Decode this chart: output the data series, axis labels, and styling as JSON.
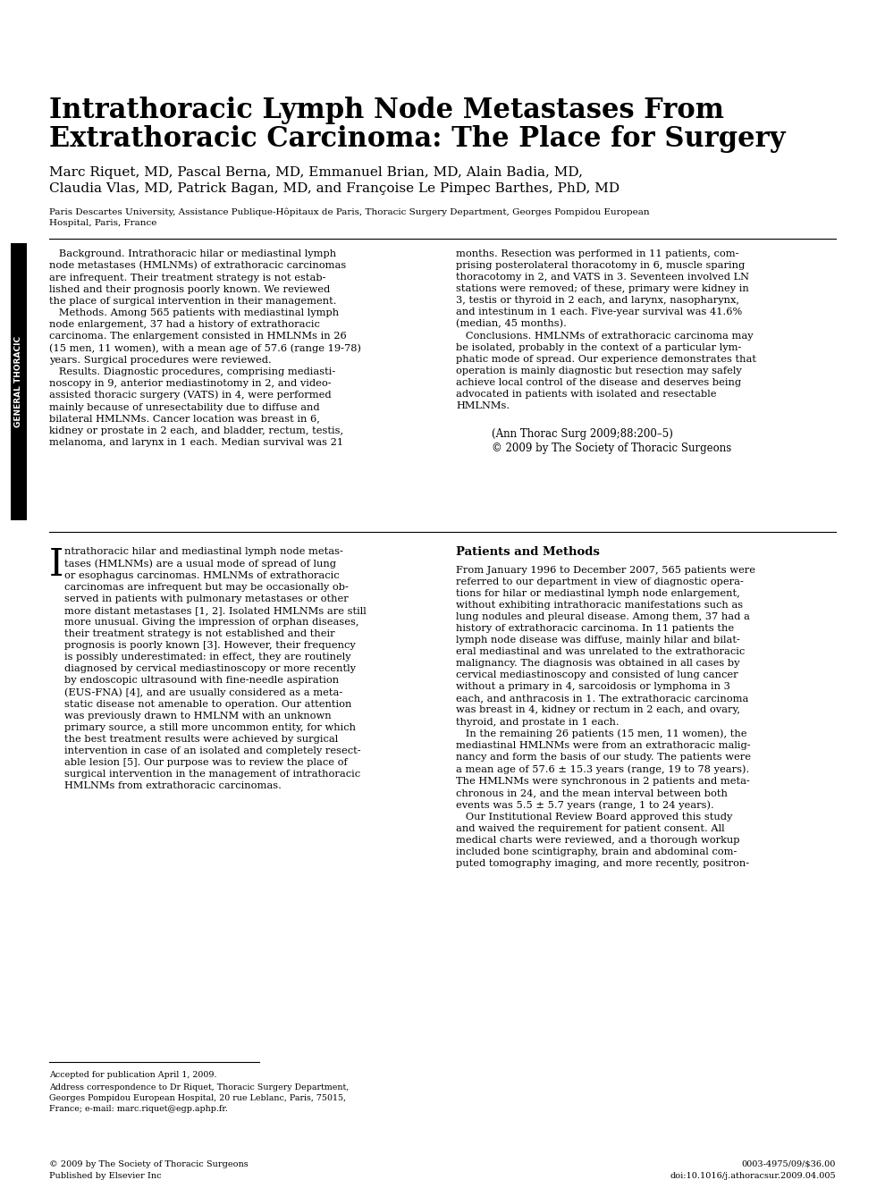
{
  "title_line1": "Intrathoracic Lymph Node Metastases From",
  "title_line2": "Extrathoracic Carcinoma: The Place for Surgery",
  "authors_line1": "Marc Riquet, MD, Pascal Berna, MD, Emmanuel Brian, MD, Alain Badia, MD,",
  "authors_line2": "Claudia Vlas, MD, Patrick Bagan, MD, and Françoise Le Pimpec Barthes, PhD, MD",
  "affiliation_line1": "Paris Descartes University, Assistance Publique-Hôpitaux de Paris, Thoracic Surgery Department, Georges Pompidou European",
  "affiliation_line2": "Hospital, Paris, France",
  "abstract_left": "   Background. Intrathoracic hilar or mediastinal lymph\nnode metastases (HMLNMs) of extrathoracic carcinomas\nare infrequent. Their treatment strategy is not estab-\nlished and their prognosis poorly known. We reviewed\nthe place of surgical intervention in their management.\n   Methods. Among 565 patients with mediastinal lymph\nnode enlargement, 37 had a history of extrathoracic\ncarcinoma. The enlargement consisted in HMLNMs in 26\n(15 men, 11 women), with a mean age of 57.6 (range 19-78)\nyears. Surgical procedures were reviewed.\n   Results. Diagnostic procedures, comprising mediasti-\nnoscopy in 9, anterior mediastinotomy in 2, and video-\nassisted thoracic surgery (VATS) in 4, were performed\nmainly because of unresectability due to diffuse and\nbilateral HMLNMs. Cancer location was breast in 6,\nkidney or prostate in 2 each, and bladder, rectum, testis,\nmelanoma, and larynx in 1 each. Median survival was 21",
  "abstract_right": "months. Resection was performed in 11 patients, com-\nprising posterolateral thoracotomy in 6, muscle sparing\nthoracotomy in 2, and VATS in 3. Seventeen involved LN\nstations were removed; of these, primary were kidney in\n3, testis or thyroid in 2 each, and larynx, nasopharynx,\nand intestinum in 1 each. Five-year survival was 41.6%\n(median, 45 months).\n   Conclusions. HMLNMs of extrathoracic carcinoma may\nbe isolated, probably in the context of a particular lym-\nphatic mode of spread. Our experience demonstrates that\noperation is mainly diagnostic but resection may safely\nachieve local control of the disease and deserves being\nadvocated in patients with isolated and resectable\nHMLNMs.",
  "citation_line1": "(Ann Thorac Surg 2009;88:200–5)",
  "citation_line2": "© 2009 by The Society of Thoracic Surgeons",
  "sidebar_text": "GENERAL THORACIC",
  "intro_dropcap": "I",
  "intro_rest": "ntrathoracic hilar and mediastinal lymph node metas-\ntases (HMLNMs) are a usual mode of spread of lung\nor esophagus carcinomas. HMLNMs of extrathoracic\ncarcinomas are infrequent but may be occasionally ob-\nserved in patients with pulmonary metastases or other\nmore distant metastases [1, 2]. Isolated HMLNMs are still\nmore unusual. Giving the impression of orphan diseases,\ntheir treatment strategy is not established and their\nprognosis is poorly known [3]. However, their frequency\nis possibly underestimated: in effect, they are routinely\ndiagnosed by cervical mediastinoscopy or more recently\nby endoscopic ultrasound with fine-needle aspiration\n(EUS-FNA) [4], and are usually considered as a meta-\nstatic disease not amenable to operation. Our attention\nwas previously drawn to HMLNM with an unknown\nprimary source, a still more uncommon entity, for which\nthe best treatment results were achieved by surgical\nintervention in case of an isolated and completely resect-\nable lesion [5]. Our purpose was to review the place of\nsurgical intervention in the management of intrathoracic\nHMLNMs from extrathoracic carcinomas.",
  "patients_methods_title": "Patients and Methods",
  "patients_methods_text": "From January 1996 to December 2007, 565 patients were\nreferred to our department in view of diagnostic opera-\ntions for hilar or mediastinal lymph node enlargement,\nwithout exhibiting intrathoracic manifestations such as\nlung nodules and pleural disease. Among them, 37 had a\nhistory of extrathoracic carcinoma. In 11 patients the\nlymph node disease was diffuse, mainly hilar and bilat-\neral mediastinal and was unrelated to the extrathoracic\nmalignancy. The diagnosis was obtained in all cases by\ncervical mediastinoscopy and consisted of lung cancer\nwithout a primary in 4, sarcoidosis or lymphoma in 3\neach, and anthracosis in 1. The extrathoracic carcinoma\nwas breast in 4, kidney or rectum in 2 each, and ovary,\nthyroid, and prostate in 1 each.\n   In the remaining 26 patients (15 men, 11 women), the\nmediastinal HMLNMs were from an extrathoracic malig-\nnancy and form the basis of our study. The patients were\na mean age of 57.6 ± 15.3 years (range, 19 to 78 years).\nThe HMLNMs were synchronous in 2 patients and meta-\nchronous in 24, and the mean interval between both\nevents was 5.5 ± 5.7 years (range, 1 to 24 years).\n   Our Institutional Review Board approved this study\nand waived the requirement for patient consent. All\nmedical charts were reviewed, and a thorough workup\nincluded bone scintigraphy, brain and abdominal com-\nputed tomography imaging, and more recently, positron-",
  "footnote_line": "Accepted for publication April 1, 2009.",
  "footnote_address1": "Address correspondence to Dr Riquet, Thoracic Surgery Department,",
  "footnote_address2": "Georges Pompidou European Hospital, 20 rue Leblanc, Paris, 75015,",
  "footnote_address3": "France; e-mail: marc.riquet@egp.aphp.fr.",
  "footer_left1": "© 2009 by The Society of Thoracic Surgeons",
  "footer_left2": "Published by Elsevier Inc",
  "footer_right1": "0003-4975/09/$36.00",
  "footer_right2": "doi:10.1016/j.athoracsur.2009.04.005",
  "bg_color": "#ffffff",
  "text_color": "#000000",
  "sidebar_bg": "#000000",
  "sidebar_text_color": "#ffffff"
}
